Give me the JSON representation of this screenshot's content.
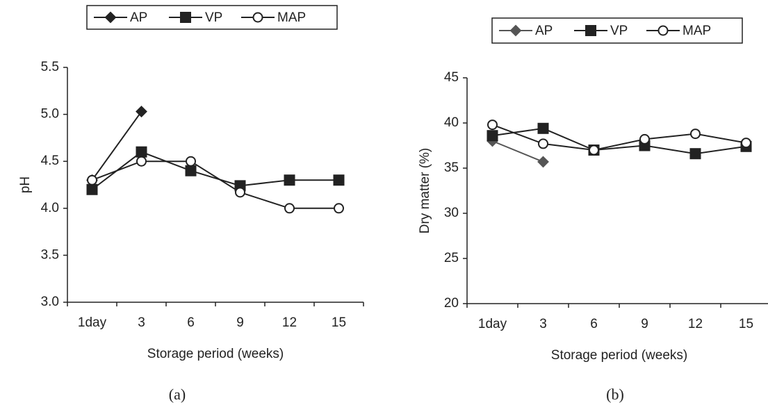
{
  "chart_data": [
    {
      "type": "line",
      "caption": "(a)",
      "x_label": "Storage period (weeks)",
      "y_label": "pH",
      "categories": [
        "1day",
        "3",
        "6",
        "9",
        "12",
        "15"
      ],
      "series": [
        {
          "name": "AP",
          "color": "#222222",
          "marker": "diamond",
          "values": [
            4.3,
            5.03,
            null,
            null,
            null,
            null
          ]
        },
        {
          "name": "VP",
          "color": "#222222",
          "marker": "square",
          "values": [
            4.2,
            4.6,
            4.4,
            4.24,
            4.3,
            4.3
          ]
        },
        {
          "name": "MAP",
          "color": "#222222",
          "marker": "circle",
          "values": [
            4.3,
            4.5,
            4.5,
            4.17,
            4.0,
            4.0
          ]
        }
      ],
      "ylim": [
        3.0,
        5.5
      ],
      "yticks": [
        {
          "value": 3.0,
          "label": "3.0"
        },
        3.5,
        {
          "value": 4.0,
          "label": "4.0"
        },
        4.5,
        {
          "value": 5.0,
          "label": "5.0"
        },
        5.5
      ]
    },
    {
      "type": "line",
      "caption": "(b)",
      "x_label": "Storage period (weeks)",
      "y_label": "Dry matter (%)",
      "categories": [
        "1day",
        "3",
        "6",
        "9",
        "12",
        "15"
      ],
      "series": [
        {
          "name": "AP",
          "color": "#555555",
          "marker": "diamond",
          "values": [
            38,
            35.7,
            null,
            null,
            null,
            null
          ]
        },
        {
          "name": "VP",
          "color": "#222222",
          "marker": "square",
          "values": [
            38.6,
            39.4,
            37.0,
            37.5,
            36.6,
            37.4
          ]
        },
        {
          "name": "MAP",
          "color": "#222222",
          "marker": "circle",
          "values": [
            39.8,
            37.7,
            37.0,
            38.2,
            38.8,
            37.8
          ]
        }
      ],
      "ylim": [
        20,
        45
      ],
      "yticks": [
        20,
        25,
        30,
        35,
        40,
        45
      ]
    }
  ]
}
